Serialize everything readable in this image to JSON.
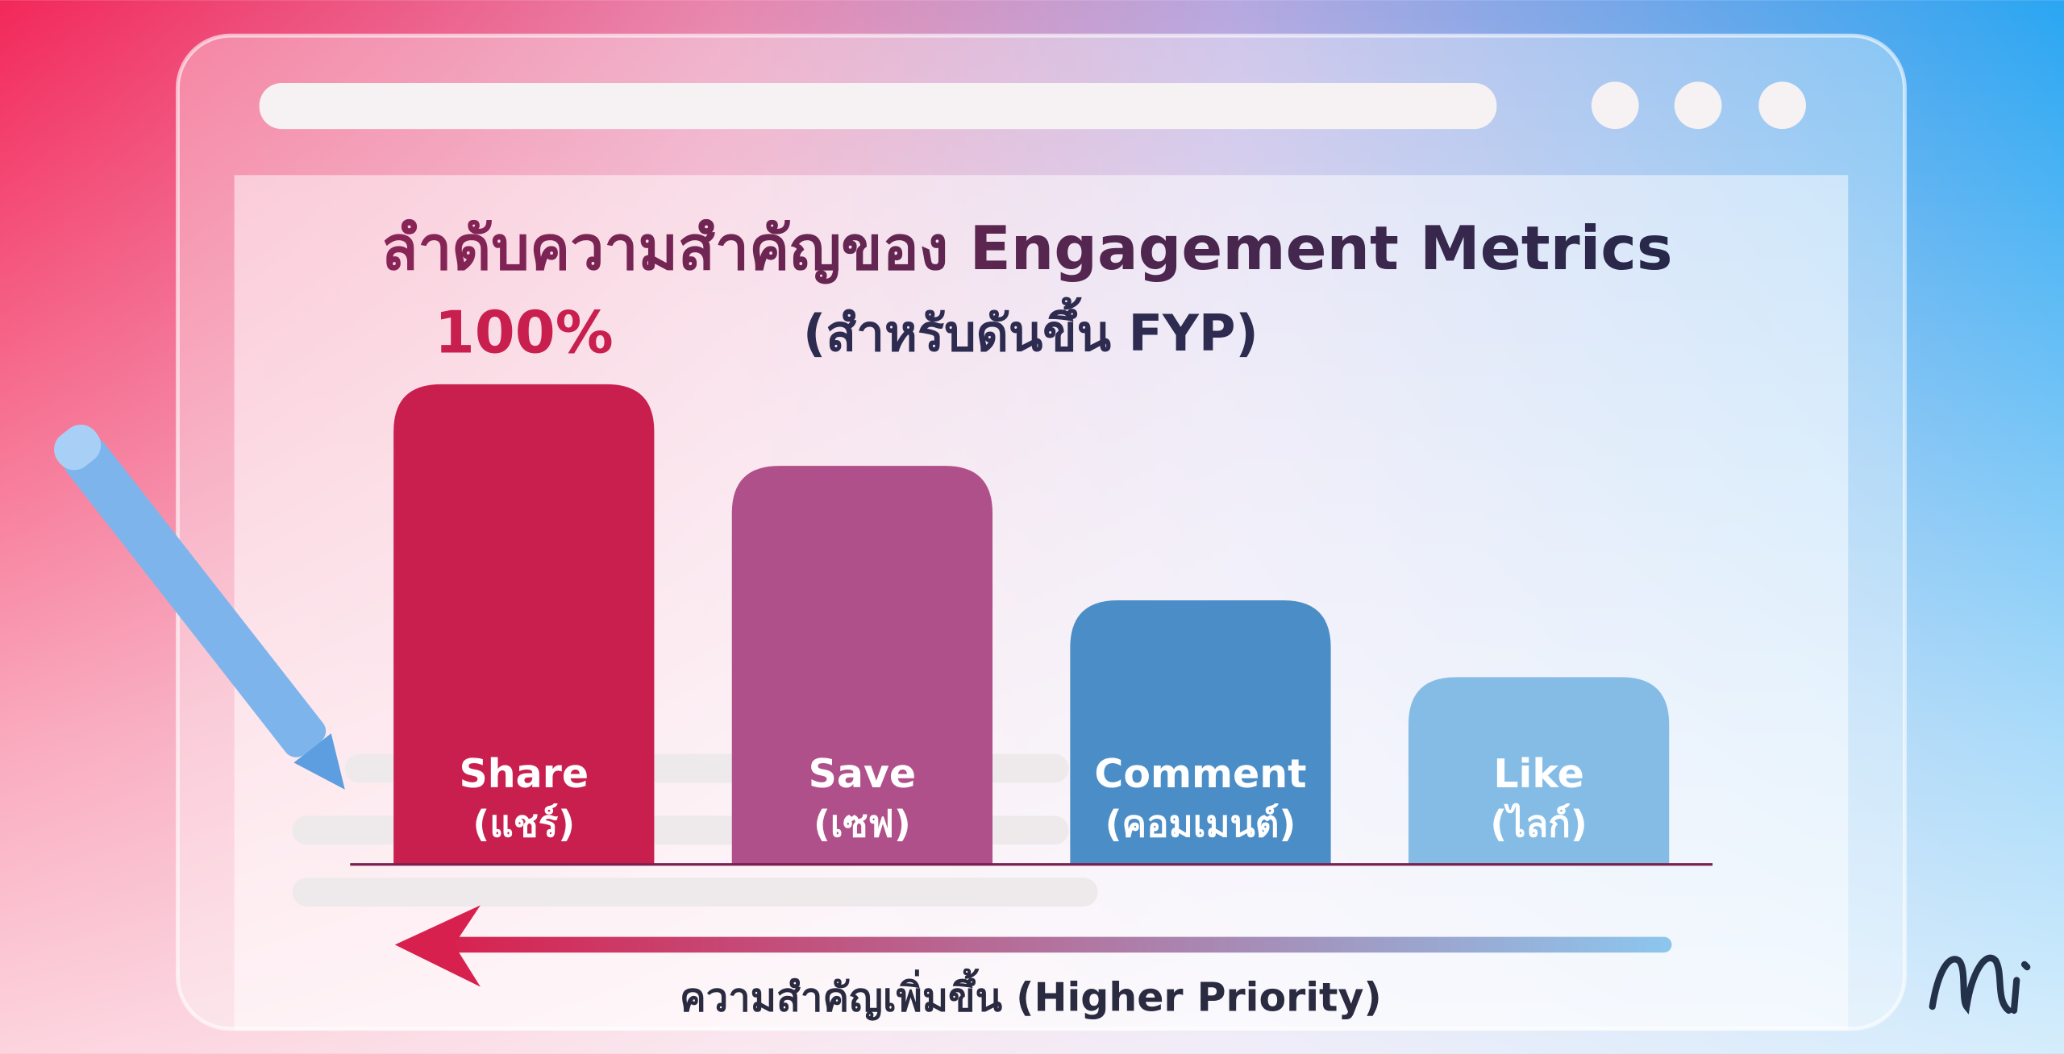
{
  "chart_data": {
    "type": "bar",
    "title": "ลำดับความสำคัญของ Engagement Metrics",
    "subtitle": "(สำหรับดันขึ้น FYP)",
    "categories": [
      "Share",
      "Save",
      "Comment",
      "Like"
    ],
    "category_subtitles": [
      "(แชร์)",
      "(เซฟ)",
      "(คอมเมนต์)",
      "(ไลก์)"
    ],
    "values": [
      100,
      83,
      55,
      39
    ],
    "value_labels": [
      "100%",
      null,
      null,
      null
    ],
    "colors": [
      "#c81f4e",
      "#b0508a",
      "#4b8dc6",
      "#84bce6"
    ],
    "x_annotation": "ความสำคัญเพิ่มขึ้น (Higher Priority)"
  }
}
